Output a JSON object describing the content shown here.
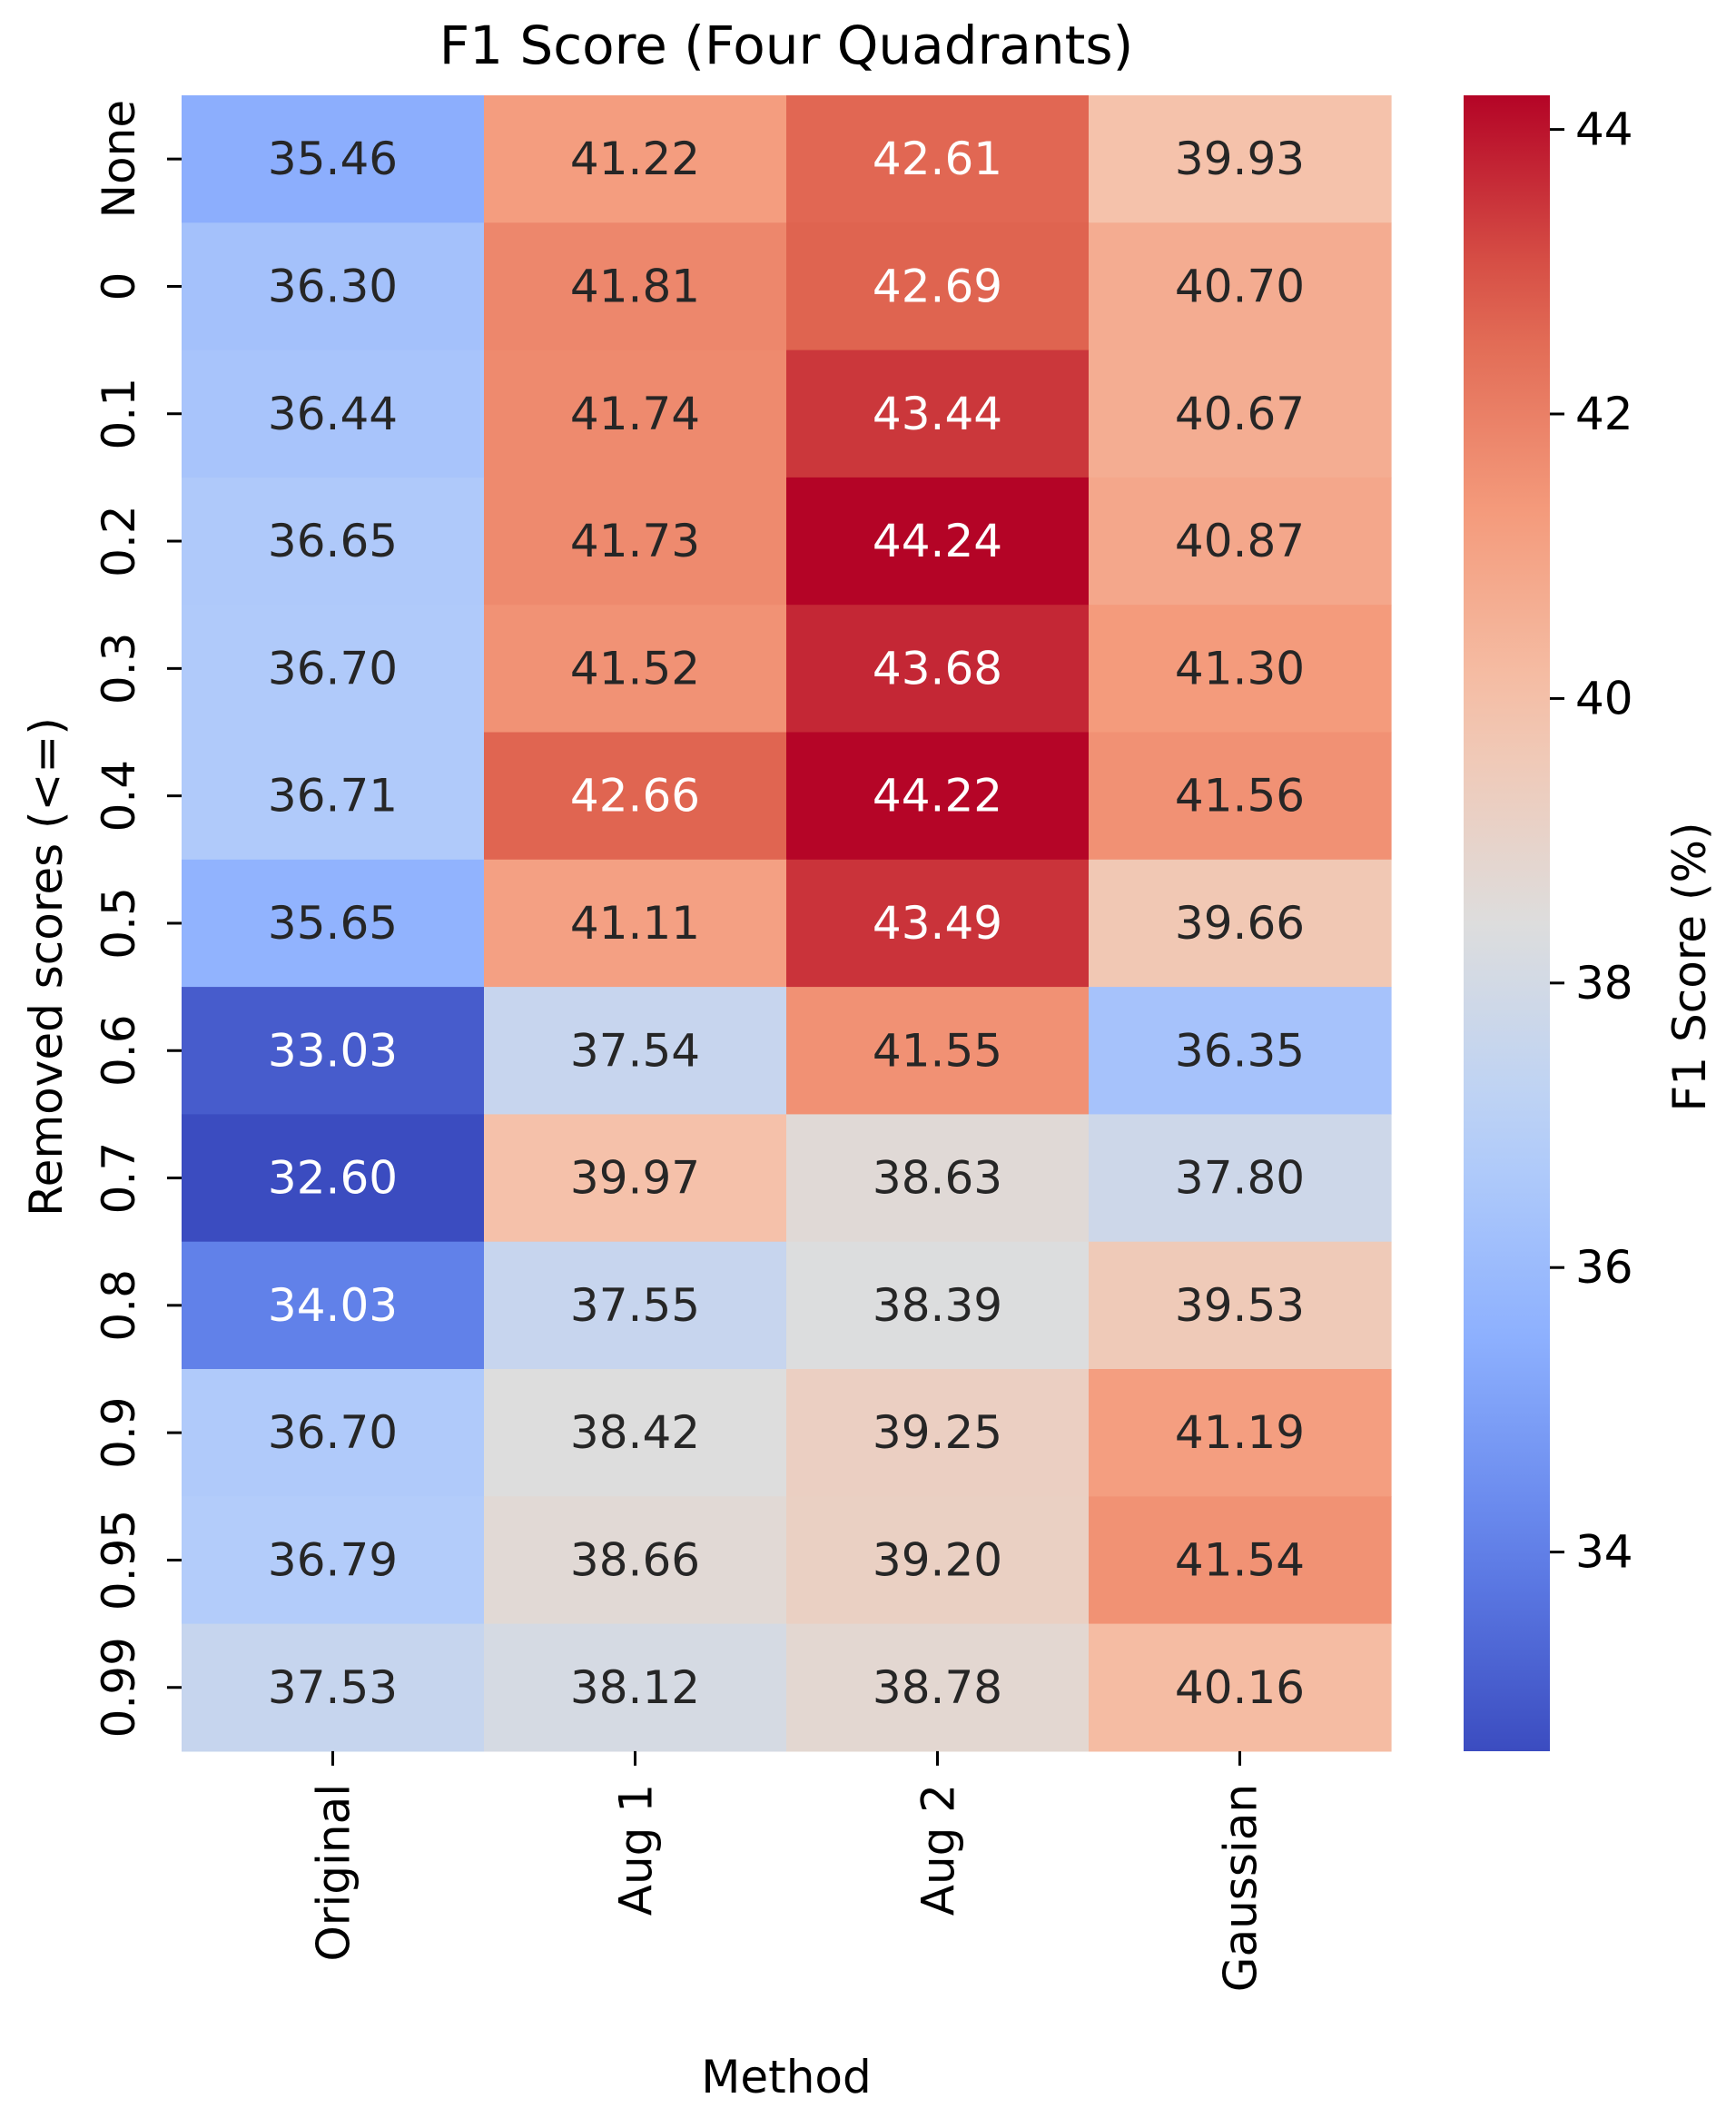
{
  "chart_data": {
    "type": "heatmap",
    "title": "F1 Score (Four Quadrants)",
    "xlabel": "Method",
    "ylabel": "Removed scores (<=)",
    "colorbar_label": "F1 Score (%)",
    "colormap": "coolwarm",
    "x_categories": [
      "Original",
      "Aug 1",
      "Aug 2",
      "Gaussian"
    ],
    "y_categories": [
      "None",
      "0",
      "0.1",
      "0.2",
      "0.3",
      "0.4",
      "0.5",
      "0.6",
      "0.7",
      "0.8",
      "0.9",
      "0.95",
      "0.99"
    ],
    "values": [
      [
        35.46,
        41.22,
        42.61,
        39.93
      ],
      [
        36.3,
        41.81,
        42.69,
        40.7
      ],
      [
        36.44,
        41.74,
        43.44,
        40.67
      ],
      [
        36.65,
        41.73,
        44.24,
        40.87
      ],
      [
        36.7,
        41.52,
        43.68,
        41.3
      ],
      [
        36.71,
        42.66,
        44.22,
        41.56
      ],
      [
        35.65,
        41.11,
        43.49,
        39.66
      ],
      [
        33.03,
        37.54,
        41.55,
        36.35
      ],
      [
        32.6,
        39.97,
        38.63,
        37.8
      ],
      [
        34.03,
        37.55,
        38.39,
        39.53
      ],
      [
        36.7,
        38.42,
        39.25,
        41.19
      ],
      [
        36.79,
        38.66,
        39.2,
        41.54
      ],
      [
        37.53,
        38.12,
        38.78,
        40.16
      ]
    ],
    "value_format": "2 decimals",
    "color_range": [
      32.6,
      44.24
    ],
    "colorbar_ticks": [
      34,
      36,
      38,
      40,
      42,
      44
    ],
    "colorbar_tick_labels": [
      "34",
      "36",
      "38",
      "40",
      "42",
      "44"
    ]
  }
}
